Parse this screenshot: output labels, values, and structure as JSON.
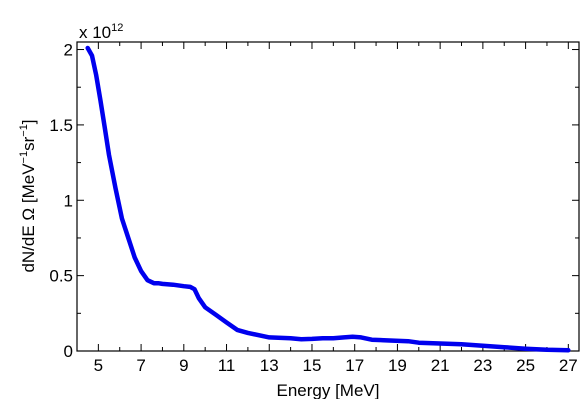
{
  "chart_data": {
    "type": "line",
    "title": "",
    "xlabel": "Energy [MeV]",
    "ylabel_parts": [
      "dN/dE Ω [MeV",
      "−1",
      "sr",
      "−1",
      "]"
    ],
    "y_multiplier": {
      "base": "x 10",
      "exponent": "12"
    },
    "xlim": [
      4,
      27.5
    ],
    "ylim": [
      0,
      2.05
    ],
    "xticks": [
      "5",
      "7",
      "9",
      "11",
      "13",
      "15",
      "17",
      "19",
      "21",
      "23",
      "25",
      "27"
    ],
    "yticks": [
      "0",
      "0.5",
      "1",
      "1.5",
      "2"
    ],
    "grid": false,
    "legend": "none",
    "series": [
      {
        "color": "#0000ee",
        "x": [
          4.5,
          4.7,
          4.9,
          5.1,
          5.3,
          5.5,
          5.8,
          6.1,
          6.4,
          6.7,
          7.0,
          7.3,
          7.6,
          7.8,
          8.0,
          8.5,
          9.0,
          9.3,
          9.5,
          9.7,
          10.0,
          10.5,
          11.0,
          11.5,
          12.0,
          13.0,
          14.0,
          14.5,
          15.0,
          15.5,
          16.0,
          16.5,
          16.9,
          17.3,
          17.8,
          18.5,
          19.5,
          20.0,
          21.0,
          22.0,
          23.0,
          24.0,
          25.0,
          26.0,
          27.0
        ],
        "y": [
          2.01,
          1.96,
          1.83,
          1.66,
          1.48,
          1.3,
          1.08,
          0.88,
          0.75,
          0.62,
          0.53,
          0.47,
          0.45,
          0.45,
          0.445,
          0.44,
          0.43,
          0.425,
          0.41,
          0.35,
          0.29,
          0.24,
          0.19,
          0.14,
          0.12,
          0.09,
          0.085,
          0.078,
          0.08,
          0.085,
          0.085,
          0.09,
          0.095,
          0.09,
          0.075,
          0.07,
          0.065,
          0.055,
          0.05,
          0.045,
          0.035,
          0.025,
          0.015,
          0.008,
          0.005
        ]
      }
    ]
  }
}
